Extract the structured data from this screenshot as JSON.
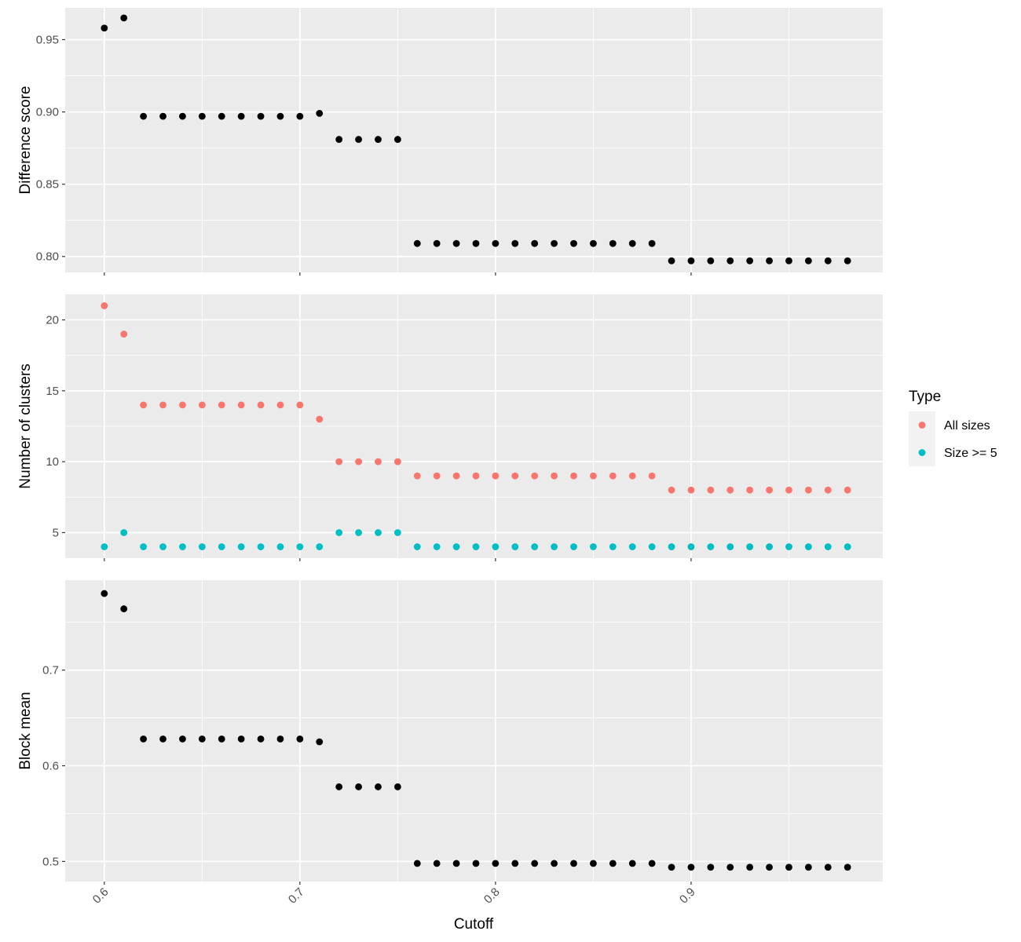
{
  "chart_data": {
    "type": "scatter",
    "xlabel": "Cutoff",
    "x_ticks": [
      0.6,
      0.7,
      0.8,
      0.9
    ],
    "x_tick_labels": [
      "0.6",
      "0.7",
      "0.8",
      "0.9"
    ],
    "xlim": [
      0.58,
      0.998
    ],
    "x": [
      0.6,
      0.61,
      0.62,
      0.63,
      0.64,
      0.65,
      0.66,
      0.67,
      0.68,
      0.69,
      0.7,
      0.71,
      0.72,
      0.73,
      0.74,
      0.75,
      0.76,
      0.77,
      0.78,
      0.79,
      0.8,
      0.81,
      0.82,
      0.83,
      0.84,
      0.85,
      0.86,
      0.87,
      0.88,
      0.89,
      0.9,
      0.91,
      0.92,
      0.93,
      0.94,
      0.95,
      0.96,
      0.97,
      0.98
    ],
    "grid": true,
    "legend": {
      "title": "Type",
      "position": "right",
      "entries": [
        {
          "label": "All sizes",
          "color": "#F8766D"
        },
        {
          "label": "Size >= 5",
          "color": "#00BFC4"
        }
      ]
    },
    "panels": [
      {
        "ylabel": "Difference score",
        "ylim": [
          0.789,
          0.972
        ],
        "y_ticks": [
          0.8,
          0.85,
          0.9,
          0.95
        ],
        "y_tick_labels": [
          "0.80",
          "0.85",
          "0.90",
          "0.95"
        ],
        "series": [
          {
            "color": "#000000",
            "values": [
              0.958,
              0.965,
              0.897,
              0.897,
              0.897,
              0.897,
              0.897,
              0.897,
              0.897,
              0.897,
              0.897,
              0.899,
              0.881,
              0.881,
              0.881,
              0.881,
              0.809,
              0.809,
              0.809,
              0.809,
              0.809,
              0.809,
              0.809,
              0.809,
              0.809,
              0.809,
              0.809,
              0.809,
              0.809,
              0.797,
              0.797,
              0.797,
              0.797,
              0.797,
              0.797,
              0.797,
              0.797,
              0.797,
              0.797
            ]
          }
        ]
      },
      {
        "ylabel": "Number of clusters",
        "ylim": [
          3.2,
          21.8
        ],
        "y_ticks": [
          5,
          10,
          15,
          20
        ],
        "y_tick_labels": [
          "5",
          "10",
          "15",
          "20"
        ],
        "series": [
          {
            "name": "All sizes",
            "color": "#F8766D",
            "values": [
              21,
              19,
              14,
              14,
              14,
              14,
              14,
              14,
              14,
              14,
              14,
              13,
              10,
              10,
              10,
              10,
              9,
              9,
              9,
              9,
              9,
              9,
              9,
              9,
              9,
              9,
              9,
              9,
              9,
              8,
              8,
              8,
              8,
              8,
              8,
              8,
              8,
              8,
              8
            ]
          },
          {
            "name": "Size >= 5",
            "color": "#00BFC4",
            "values": [
              4,
              5,
              4,
              4,
              4,
              4,
              4,
              4,
              4,
              4,
              4,
              4,
              5,
              5,
              5,
              5,
              4,
              4,
              4,
              4,
              4,
              4,
              4,
              4,
              4,
              4,
              4,
              4,
              4,
              4,
              4,
              4,
              4,
              4,
              4,
              4,
              4,
              4,
              4
            ]
          }
        ]
      },
      {
        "ylabel": "Block mean",
        "ylim": [
          0.479,
          0.794
        ],
        "y_ticks": [
          0.5,
          0.6,
          0.7
        ],
        "y_tick_labels": [
          "0.5",
          "0.6",
          "0.7"
        ],
        "series": [
          {
            "color": "#000000",
            "values": [
              0.78,
              0.764,
              0.628,
              0.628,
              0.628,
              0.628,
              0.628,
              0.628,
              0.628,
              0.628,
              0.628,
              0.625,
              0.578,
              0.578,
              0.578,
              0.578,
              0.498,
              0.498,
              0.498,
              0.498,
              0.498,
              0.498,
              0.498,
              0.498,
              0.498,
              0.498,
              0.498,
              0.498,
              0.498,
              0.494,
              0.494,
              0.494,
              0.494,
              0.494,
              0.494,
              0.494,
              0.494,
              0.494,
              0.494
            ]
          }
        ]
      }
    ]
  }
}
